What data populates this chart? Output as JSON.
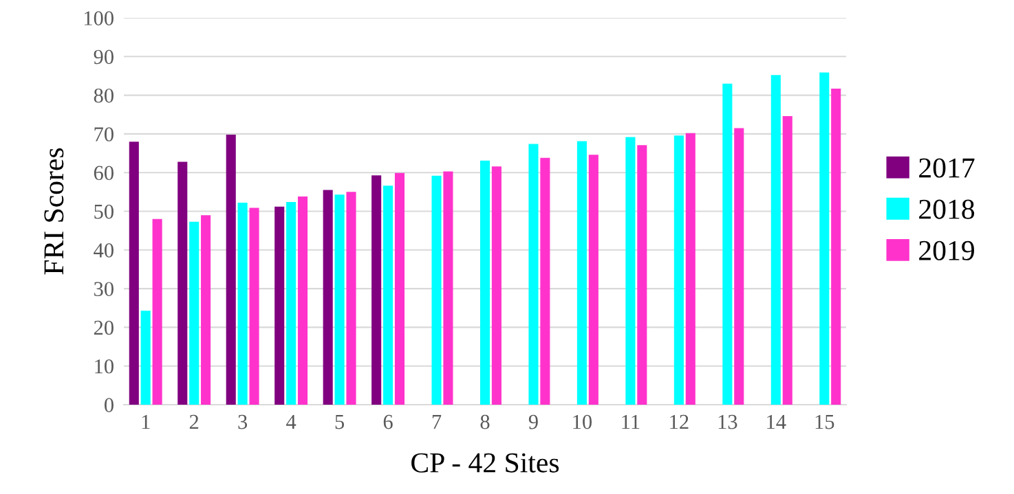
{
  "chart_data": {
    "type": "bar",
    "xlabel": "CP - 42 Sites",
    "ylabel": "FRI Scores",
    "categories": [
      "1",
      "2",
      "3",
      "4",
      "5",
      "6",
      "7",
      "8",
      "9",
      "10",
      "11",
      "12",
      "13",
      "14",
      "15"
    ],
    "series": [
      {
        "name": "2017",
        "color": "#800080",
        "values": [
          68.0,
          62.8,
          69.8,
          51.2,
          55.5,
          59.3,
          null,
          null,
          null,
          null,
          null,
          null,
          null,
          null,
          null
        ]
      },
      {
        "name": "2018",
        "color": "#00ffff",
        "values": [
          24.3,
          47.3,
          52.2,
          52.4,
          54.3,
          56.6,
          59.2,
          63.1,
          67.4,
          68.1,
          69.2,
          69.6,
          83.0,
          85.2,
          85.9
        ]
      },
      {
        "name": "2019",
        "color": "#ff33cc",
        "values": [
          48.0,
          49.0,
          50.9,
          53.8,
          55.0,
          59.9,
          60.3,
          61.6,
          63.8,
          64.6,
          67.1,
          70.2,
          71.5,
          74.6,
          81.7
        ]
      }
    ],
    "ylim": [
      0,
      100
    ],
    "yticks": [
      0,
      10,
      20,
      30,
      40,
      50,
      60,
      70,
      80,
      90,
      100
    ],
    "grid": "y",
    "legend": "right"
  }
}
